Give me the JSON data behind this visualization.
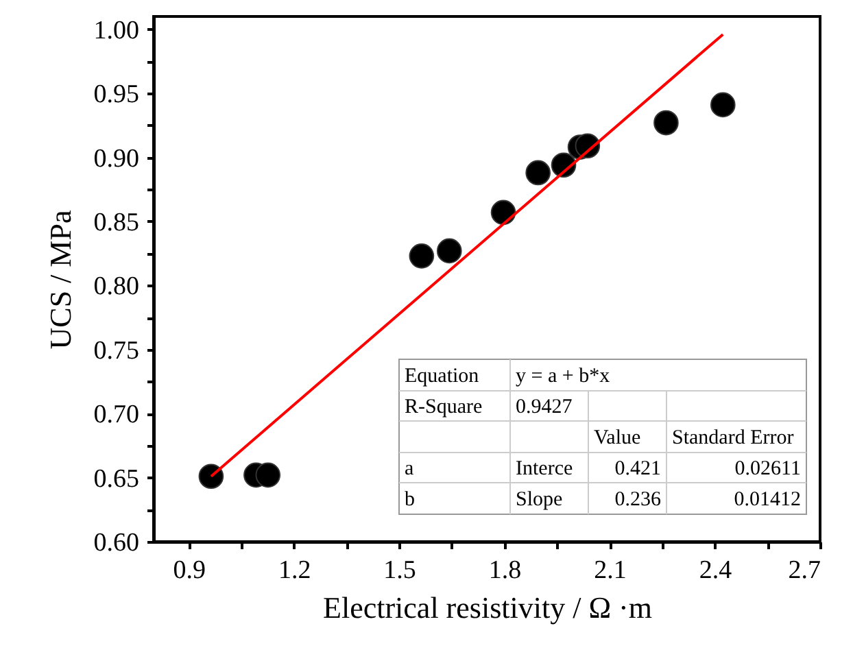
{
  "chart_data": {
    "type": "scatter",
    "xlabel": "Electrical resistivity / Ω ·m",
    "ylabel": "UCS / MPa",
    "x": [
      0.964,
      1.092,
      1.126,
      1.564,
      1.643,
      1.797,
      1.896,
      1.969,
      2.016,
      2.037,
      2.261,
      2.423
    ],
    "series": [
      {
        "color": "#000000",
        "marker": "circle",
        "values": [
          0.651,
          0.652,
          0.652,
          0.823,
          0.827,
          0.857,
          0.888,
          0.894,
          0.908,
          0.909,
          0.927,
          0.941
        ]
      },
      {
        "type": "line",
        "color": "#ff0000",
        "line_style": "solid",
        "x": [
          0.964,
          2.423
        ],
        "values": [
          0.651,
          0.996
        ]
      }
    ],
    "xlim": [
      0.8,
      2.7
    ],
    "ylim": [
      0.6,
      1.01
    ],
    "xticks": [
      0.9,
      {
        "value": 1.05,
        "label": null
      },
      1.2,
      {
        "value": 1.35,
        "label": null
      },
      1.5,
      {
        "value": 1.65,
        "label": null
      },
      1.8,
      {
        "value": 1.95,
        "label": null
      },
      2.1,
      {
        "value": 2.25,
        "label": null
      },
      2.4,
      {
        "value": 2.55,
        "label": null
      },
      2.7
    ],
    "yticks": [
      {
        "value": 0.6,
        "label": "0.60"
      },
      {
        "value": 0.625,
        "label": null
      },
      0.65,
      {
        "value": 0.675,
        "label": null
      },
      {
        "value": 0.7,
        "label": "0.70"
      },
      {
        "value": 0.725,
        "label": null
      },
      0.75,
      {
        "value": 0.775,
        "label": null
      },
      {
        "value": 0.8,
        "label": "0.80"
      },
      {
        "value": 0.825,
        "label": null
      },
      0.85,
      {
        "value": 0.875,
        "label": null
      },
      {
        "value": 0.9,
        "label": "0.90"
      },
      {
        "value": 0.925,
        "label": null
      },
      0.95,
      {
        "value": 0.975,
        "label": null
      },
      {
        "value": 1.0,
        "label": "1.00"
      }
    ],
    "grid": false,
    "annotations": [
      "Equation",
      "y = a + b*x",
      "R-Square",
      "0.9427",
      "Value",
      "Standard Error",
      "a",
      "Interce",
      "0.421",
      "0.02611",
      "b",
      "Slope",
      "0.236",
      "0.01412"
    ]
  }
}
